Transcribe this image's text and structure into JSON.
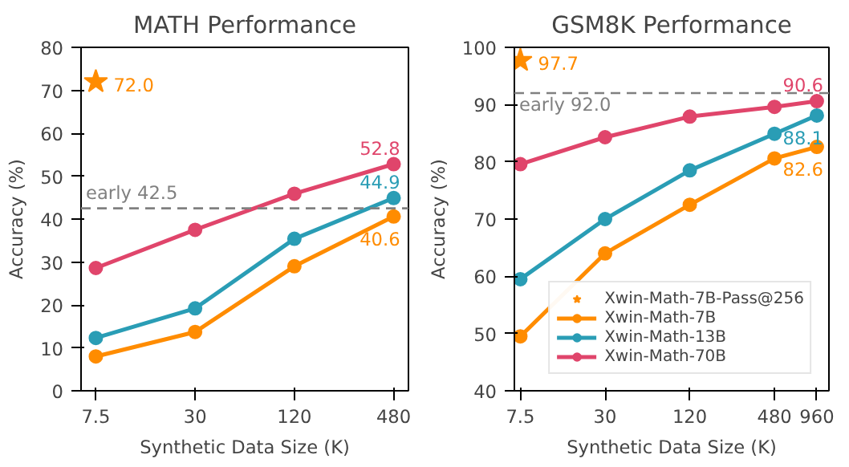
{
  "chart_data": [
    {
      "type": "line",
      "title": "MATH Performance",
      "xlabel": "Synthetic Data Size (K)",
      "ylabel": "Accuracy (%)",
      "log": "x",
      "x": [
        7.5,
        30,
        120,
        480
      ],
      "xlim": [
        6.1,
        590
      ],
      "xticks": [
        7.5,
        30,
        120,
        480
      ],
      "ylim": [
        0,
        80
      ],
      "yticks": [
        0,
        10,
        20,
        30,
        40,
        50,
        60,
        70,
        80
      ],
      "grid": false,
      "legend": false,
      "marker": "circle",
      "line_style": "solid",
      "series": [
        {
          "type": "scatter",
          "marker": "star",
          "color": "#ff8c00",
          "x": [
            7.5
          ],
          "values": [
            72.0
          ],
          "value_labels": [
            "72.0"
          ]
        },
        {
          "color": "#ff8c00",
          "values": [
            8.0,
            13.7,
            29.0,
            40.6
          ],
          "value_labels": [
            null,
            null,
            null,
            "40.6"
          ]
        },
        {
          "color": "#2a9db5",
          "values": [
            12.3,
            19.2,
            35.4,
            44.9
          ],
          "value_labels": [
            null,
            null,
            null,
            "44.9"
          ]
        },
        {
          "color": "#e0456b",
          "values": [
            28.6,
            37.5,
            45.9,
            52.8
          ],
          "value_labels": [
            null,
            null,
            null,
            "52.8"
          ]
        }
      ],
      "ref_lines": [
        {
          "axis": "y",
          "value": 42.5,
          "label": "early 42.5",
          "color": "#808080",
          "line_style": "dashed"
        }
      ]
    },
    {
      "type": "line",
      "title": "GSM8K Performance",
      "xlabel": "Synthetic Data Size (K)",
      "ylabel": "Accuracy (%)",
      "log": "x",
      "x": [
        7.5,
        30,
        120,
        480,
        960
      ],
      "xlim": [
        6.8,
        1170
      ],
      "xticks": [
        7.5,
        30,
        120,
        480,
        960
      ],
      "ylim": [
        40,
        100
      ],
      "yticks": [
        40,
        50,
        60,
        70,
        80,
        90,
        100
      ],
      "grid": false,
      "legend": "bottom right",
      "marker": "circle",
      "line_style": "solid",
      "series": [
        {
          "name": "Xwin-Math-7B-Pass@256",
          "type": "scatter",
          "marker": "star",
          "color": "#ff8c00",
          "x": [
            7.5
          ],
          "values": [
            97.7
          ],
          "value_labels": [
            "97.7"
          ]
        },
        {
          "name": "Xwin-Math-7B",
          "color": "#ff8c00",
          "values": [
            49.5,
            64.0,
            72.5,
            80.6,
            82.6
          ],
          "value_labels": [
            null,
            null,
            null,
            null,
            "82.6"
          ]
        },
        {
          "name": "Xwin-Math-13B",
          "color": "#2a9db5",
          "values": [
            59.5,
            70.0,
            78.5,
            84.9,
            88.1
          ],
          "value_labels": [
            null,
            null,
            null,
            null,
            "88.1"
          ]
        },
        {
          "name": "Xwin-Math-70B",
          "color": "#e0456b",
          "values": [
            79.6,
            84.3,
            87.9,
            89.6,
            90.6
          ],
          "value_labels": [
            null,
            null,
            null,
            null,
            "90.6"
          ]
        }
      ],
      "ref_lines": [
        {
          "axis": "y",
          "value": 92.0,
          "label": "early 92.0",
          "color": "#808080",
          "line_style": "dashed"
        }
      ]
    }
  ]
}
